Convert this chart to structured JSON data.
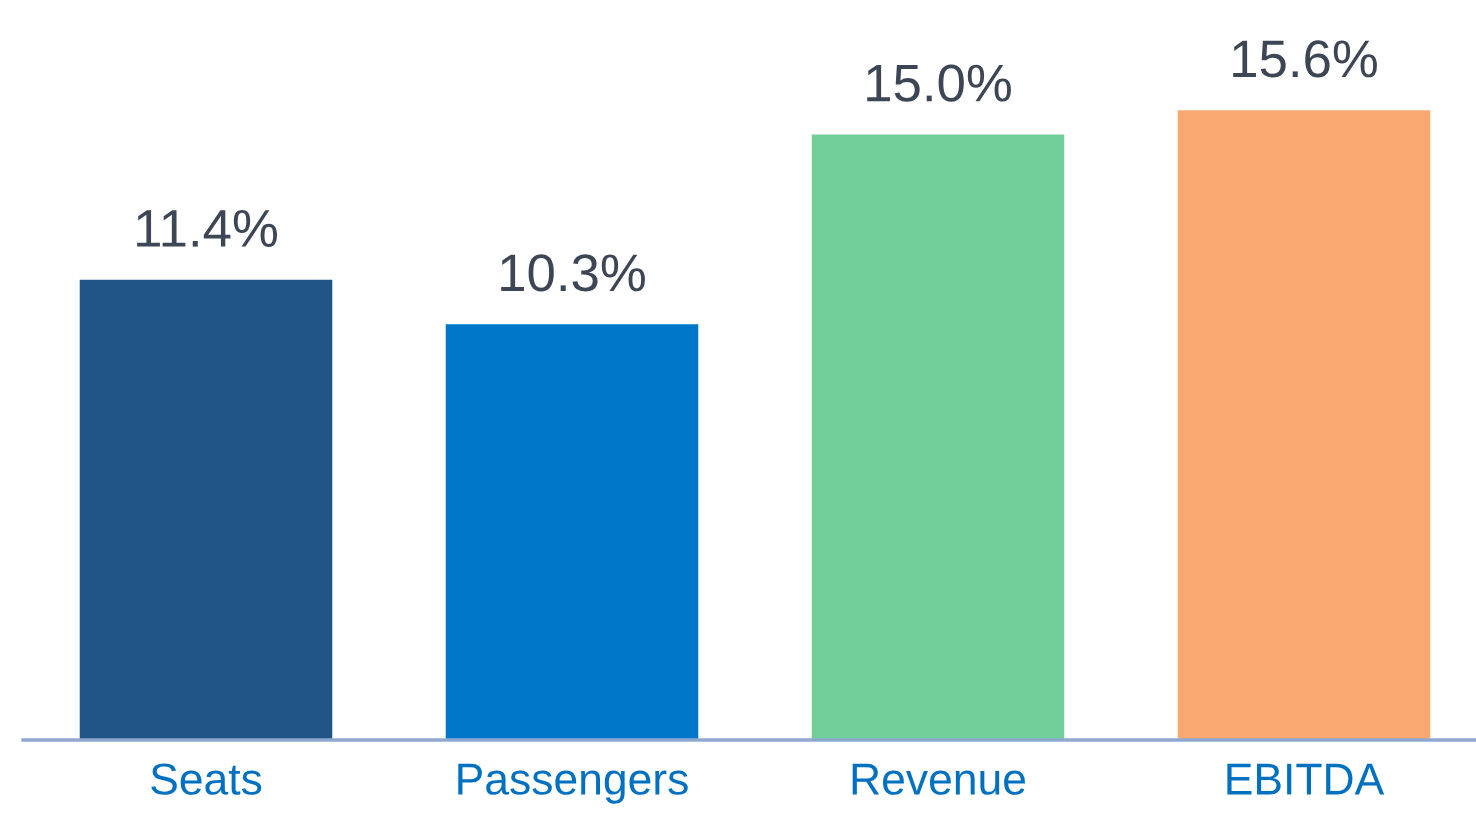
{
  "chart_data": {
    "type": "bar",
    "categories": [
      "Seats",
      "Passengers",
      "Revenue",
      "EBITDA"
    ],
    "values": [
      11.4,
      10.3,
      15.0,
      15.6
    ],
    "colors": [
      "#215587",
      "#0077c8",
      "#72cf9a",
      "#f8a870"
    ],
    "value_labels": [
      "11.4%",
      "10.3%",
      "15.0%",
      "15.6%"
    ],
    "grid": false,
    "legend": false,
    "tick_labels": "x"
  }
}
